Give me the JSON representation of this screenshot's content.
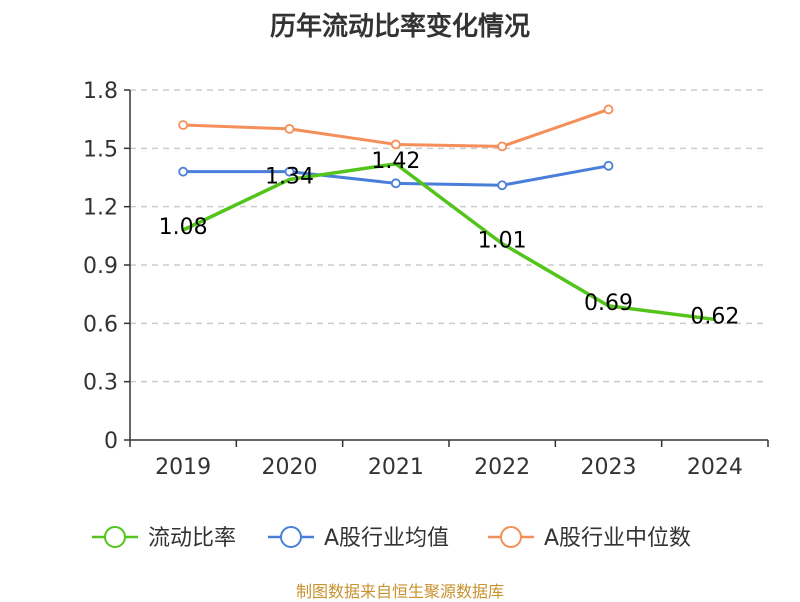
{
  "title": "历年流动比率变化情况",
  "source": "制图数据来自恒生聚源数据库",
  "chart_data": {
    "type": "line",
    "title": "历年流动比率变化情况",
    "xlabel": "",
    "ylabel": "",
    "categories": [
      "2019",
      "2020",
      "2021",
      "2022",
      "2023",
      "2024"
    ],
    "ylim": [
      0,
      1.8
    ],
    "yticks": [
      0,
      0.3,
      0.6,
      0.9,
      1.2,
      1.5,
      1.8
    ],
    "ytick_labels": [
      "0",
      "0.3",
      "0.6",
      "0.9",
      "1.2",
      "1.5",
      "1.8"
    ],
    "grid": true,
    "legend_position": "bottom",
    "series": [
      {
        "name": "流动比率",
        "color": "#52c41a",
        "values": [
          1.08,
          1.34,
          1.42,
          1.01,
          0.69,
          0.62
        ],
        "labels": [
          "1.08",
          "1.34",
          "1.42",
          "1.01",
          "0.69",
          "0.62"
        ]
      },
      {
        "name": "A股行业均值",
        "color": "#4a7fd9",
        "values": [
          1.38,
          1.38,
          1.32,
          1.31,
          1.41,
          null
        ]
      },
      {
        "name": "A股行业中位数",
        "color": "#f58f5a",
        "values": [
          1.62,
          1.6,
          1.52,
          1.51,
          1.7,
          null
        ]
      }
    ]
  }
}
